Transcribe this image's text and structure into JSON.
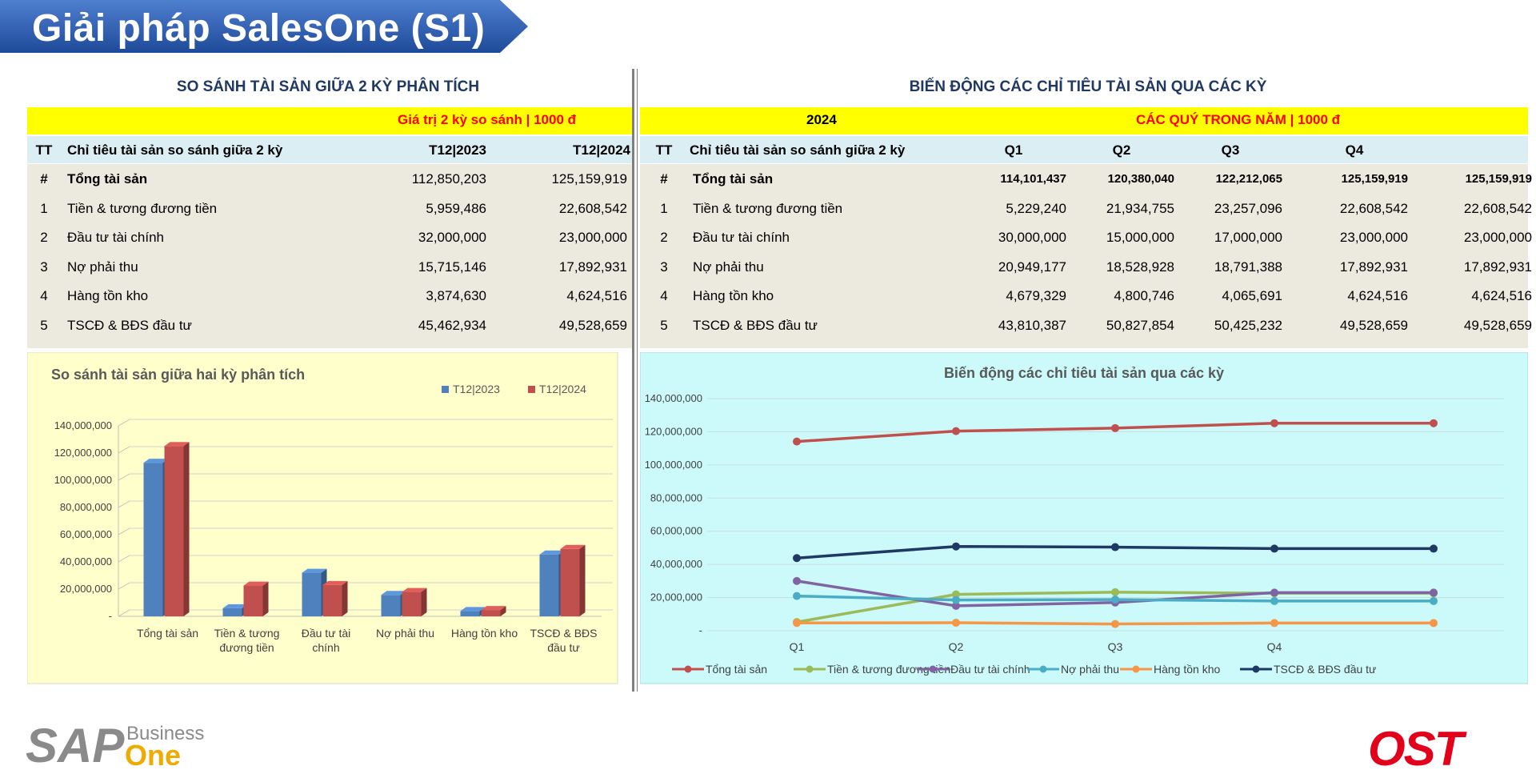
{
  "page": {
    "title": "Giải pháp SalesOne (S1)"
  },
  "left": {
    "section_title": "SO SÁNH TÀI SẢN GIỮA 2 KỲ PHÂN TÍCH",
    "yellow_label": "Giá trị 2 kỳ so sánh | 1000 đ",
    "headers": [
      "TT",
      "Chỉ tiêu tài sản so sánh giữa 2 kỳ",
      "T12|2023",
      "T12|2024"
    ],
    "rows": [
      {
        "tt": "#",
        "name": "Tổng tài sản",
        "v1": "112,850,203",
        "v2": "125,159,919",
        "bold": true
      },
      {
        "tt": "1",
        "name": "Tiền & tương đương tiền",
        "v1": "5,959,486",
        "v2": "22,608,542"
      },
      {
        "tt": "2",
        "name": "Đầu tư tài chính",
        "v1": "32,000,000",
        "v2": "23,000,000"
      },
      {
        "tt": "3",
        "name": "Nợ phải thu",
        "v1": "15,715,146",
        "v2": "17,892,931"
      },
      {
        "tt": "4",
        "name": "Hàng tồn kho",
        "v1": "3,874,630",
        "v2": "4,624,516"
      },
      {
        "tt": "5",
        "name": "TSCĐ & BĐS đầu tư",
        "v1": "45,462,934",
        "v2": "49,528,659"
      }
    ]
  },
  "right": {
    "section_title": "BIẾN ĐỘNG CÁC CHỈ TIÊU TÀI SẢN QUA CÁC KỲ",
    "year": "2024",
    "yellow_label": "CÁC QUÝ TRONG NĂM | 1000 đ",
    "headers": [
      "TT",
      "Chỉ tiêu tài sản so sánh giữa 2 kỳ",
      "Q1",
      "Q2",
      "Q3",
      "Q4",
      ""
    ],
    "rows": [
      {
        "tt": "#",
        "name": "Tổng tài sản",
        "vals": [
          "114,101,437",
          "120,380,040",
          "122,212,065",
          "125,159,919",
          "125,159,919"
        ],
        "bold": true
      },
      {
        "tt": "1",
        "name": "Tiền & tương đương tiền",
        "vals": [
          "5,229,240",
          "21,934,755",
          "23,257,096",
          "22,608,542",
          "22,608,542"
        ]
      },
      {
        "tt": "2",
        "name": "Đầu tư tài chính",
        "vals": [
          "30,000,000",
          "15,000,000",
          "17,000,000",
          "23,000,000",
          "23,000,000"
        ]
      },
      {
        "tt": "3",
        "name": "Nợ phải thu",
        "vals": [
          "20,949,177",
          "18,528,928",
          "18,791,388",
          "17,892,931",
          "17,892,931"
        ]
      },
      {
        "tt": "4",
        "name": "Hàng tồn kho",
        "vals": [
          "4,679,329",
          "4,800,746",
          "4,065,691",
          "4,624,516",
          "4,624,516"
        ]
      },
      {
        "tt": "5",
        "name": "TSCĐ & BĐS đầu tư",
        "vals": [
          "43,810,387",
          "50,827,854",
          "50,425,232",
          "49,528,659",
          "49,528,659"
        ]
      }
    ]
  },
  "chart_data": [
    {
      "type": "bar",
      "title": "So sánh tài sản giữa hai kỳ phân tích",
      "categories": [
        "Tổng tài sản",
        "Tiền & tương đương tiền",
        "Đầu tư tài chính",
        "Nợ phải thu",
        "Hàng tồn kho",
        "TSCĐ & BĐS đầu tư"
      ],
      "series": [
        {
          "name": "T12|2023",
          "color": "#4f81bd",
          "values": [
            112850203,
            5959486,
            32000000,
            15715146,
            3874630,
            45462934
          ]
        },
        {
          "name": "T12|2024",
          "color": "#c0504d",
          "values": [
            125159919,
            22608542,
            23000000,
            17892931,
            4624516,
            49528659
          ]
        }
      ],
      "yticks": [
        "-",
        "20,000,000",
        "40,000,000",
        "60,000,000",
        "80,000,000",
        "100,000,000",
        "120,000,000",
        "140,000,000"
      ],
      "ylim": [
        0,
        140000000
      ],
      "legend": "top-right",
      "grid": true
    },
    {
      "type": "line",
      "title": "Biến động các chỉ tiêu tài sản qua các kỳ",
      "categories": [
        "Q1",
        "Q2",
        "Q3",
        "Q4",
        ""
      ],
      "series": [
        {
          "name": "Tổng tài sản",
          "color": "#c0504d",
          "values": [
            114101437,
            120380040,
            122212065,
            125159919,
            125159919
          ]
        },
        {
          "name": "Tiền & tương đương tiền",
          "color": "#9bbb59",
          "values": [
            5229240,
            21934755,
            23257096,
            22608542,
            22608542
          ]
        },
        {
          "name": "Đầu tư tài chính",
          "color": "#8064a2",
          "values": [
            30000000,
            15000000,
            17000000,
            23000000,
            23000000
          ]
        },
        {
          "name": "Nợ phải thu",
          "color": "#4bacc6",
          "values": [
            20949177,
            18528928,
            18791388,
            17892931,
            17892931
          ]
        },
        {
          "name": "Hàng tồn kho",
          "color": "#f79646",
          "values": [
            4679329,
            4800746,
            4065691,
            4624516,
            4624516
          ]
        },
        {
          "name": "TSCĐ & BĐS đầu tư",
          "color": "#1f3864",
          "values": [
            43810387,
            50827854,
            50425232,
            49528659,
            49528659
          ]
        }
      ],
      "yticks": [
        "-",
        "20,000,000",
        "40,000,000",
        "60,000,000",
        "80,000,000",
        "100,000,000",
        "120,000,000",
        "140,000,000"
      ],
      "ylim": [
        0,
        140000000
      ],
      "legend": "bottom",
      "grid": true
    }
  ],
  "logos": {
    "sap_text": "SAP",
    "business_text": "Business",
    "one_text": "One",
    "ost_text": "OST"
  },
  "colors": {
    "banner": "#2f5fb0",
    "yellow": "#ffff00",
    "header_blue": "#dbeef4",
    "table_bg": "#ece9df",
    "chart1_bg": "#ffffcc",
    "chart2_bg": "#ccfafa"
  }
}
